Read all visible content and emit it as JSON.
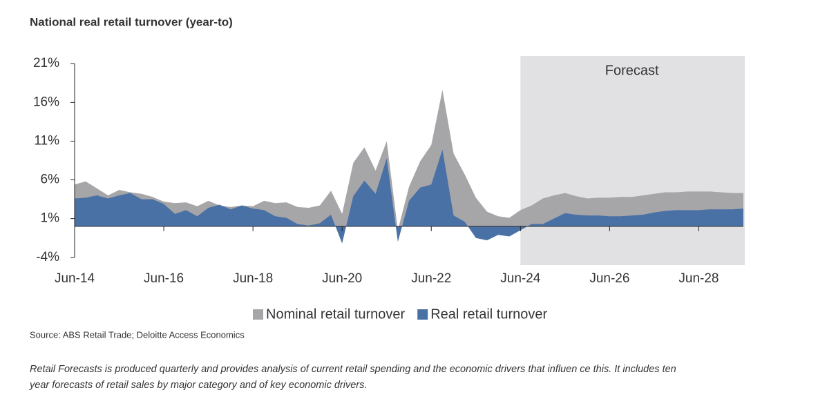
{
  "chart_data": {
    "type": "area",
    "title": "National real retail turnover (year-to)",
    "categories": [
      "Jun-14",
      null,
      null,
      null,
      null,
      null,
      null,
      null,
      "Jun-16",
      null,
      null,
      null,
      null,
      null,
      null,
      null,
      "Jun-18",
      null,
      null,
      null,
      null,
      null,
      null,
      null,
      "Jun-20",
      null,
      null,
      null,
      null,
      null,
      null,
      null,
      "Jun-22",
      null,
      null,
      null,
      null,
      null,
      null,
      null,
      "Jun-24",
      null,
      null,
      null,
      null,
      null,
      null,
      null,
      "Jun-26",
      null,
      null,
      null,
      null,
      null,
      null,
      null,
      "Jun-28",
      null,
      null,
      null,
      null
    ],
    "series": [
      {
        "name": "Nominal retail turnover",
        "color": "#a6a6a8",
        "values": [
          5.4,
          5.8,
          4.9,
          4.0,
          4.7,
          4.4,
          4.2,
          3.8,
          3.2,
          3.0,
          3.1,
          2.6,
          3.3,
          2.7,
          2.5,
          2.7,
          2.6,
          3.3,
          3.0,
          3.1,
          2.5,
          2.4,
          2.7,
          4.6,
          1.6,
          8.2,
          10.2,
          7.2,
          11.0,
          -0.5,
          5.1,
          8.4,
          10.5,
          17.6,
          9.4,
          6.7,
          3.7,
          1.9,
          1.3,
          1.1,
          2.1,
          2.7,
          3.6,
          4.0,
          4.3,
          3.9,
          3.6,
          3.7,
          3.7,
          3.8,
          3.8,
          4.0,
          4.2,
          4.4,
          4.4,
          4.5,
          4.5,
          4.5,
          4.4,
          4.3,
          4.3
        ]
      },
      {
        "name": "Real retail turnover",
        "color": "#4a71a5",
        "values": [
          3.6,
          3.7,
          4.0,
          3.6,
          4.0,
          4.3,
          3.5,
          3.5,
          2.9,
          1.6,
          2.1,
          1.3,
          2.4,
          2.8,
          2.2,
          2.7,
          2.3,
          2.1,
          1.3,
          1.1,
          0.3,
          0.1,
          0.4,
          1.5,
          -2.2,
          3.9,
          5.9,
          4.2,
          8.8,
          -2.0,
          3.3,
          5.0,
          5.4,
          9.9,
          1.4,
          0.6,
          -1.5,
          -1.8,
          -1.1,
          -1.3,
          -0.5,
          0.3,
          0.3,
          1.0,
          1.7,
          1.5,
          1.4,
          1.4,
          1.3,
          1.3,
          1.4,
          1.5,
          1.8,
          2.0,
          2.1,
          2.1,
          2.1,
          2.2,
          2.2,
          2.2,
          2.3
        ]
      }
    ],
    "ylim": [
      -5,
      22
    ],
    "yticks": [
      {
        "value": -4,
        "label": "-4%"
      },
      {
        "value": 1,
        "label": "1%"
      },
      {
        "value": 6,
        "label": "6%"
      },
      {
        "value": 11,
        "label": "11%"
      },
      {
        "value": 16,
        "label": "16%"
      },
      {
        "value": 21,
        "label": "21%"
      }
    ],
    "forecast": {
      "label": "Forecast",
      "from": "Jun-24",
      "color": "#e1e1e4"
    },
    "legend": "bottom",
    "source": "Source: ABS Retail Trade; Deloitte Access Economics",
    "note": [
      "Retail Forecasts is produced quarterly and provides analysis of current retail spending and the economic drivers that influen ce this. It includes ten",
      "year forecasts of retail sales by major category and of key economic drivers."
    ]
  }
}
